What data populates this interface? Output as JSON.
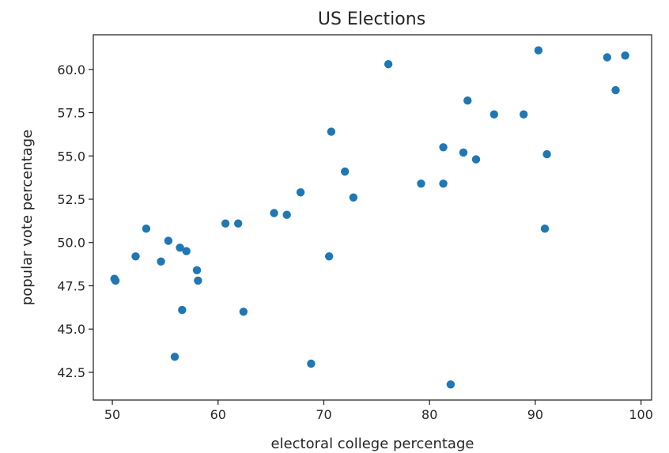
{
  "chart_data": {
    "type": "scatter",
    "title": "US Elections",
    "xlabel": "electoral college percentage",
    "ylabel": "popular vote percentage",
    "xlim": [
      48.2,
      101.0
    ],
    "ylim": [
      40.9,
      62.0
    ],
    "xticks": [
      50,
      60,
      70,
      80,
      90,
      100
    ],
    "xtick_labels": [
      "50",
      "60",
      "70",
      "80",
      "90",
      "100"
    ],
    "yticks": [
      42.5,
      45.0,
      47.5,
      50.0,
      52.5,
      55.0,
      57.5,
      60.0
    ],
    "ytick_labels": [
      "42.5",
      "45.0",
      "47.5",
      "50.0",
      "52.5",
      "55.0",
      "57.5",
      "60.0"
    ],
    "grid": false,
    "color": "#1f77b4",
    "points": [
      {
        "x": 50.2,
        "y": 47.9
      },
      {
        "x": 50.3,
        "y": 47.8
      },
      {
        "x": 52.2,
        "y": 49.2
      },
      {
        "x": 53.2,
        "y": 50.8
      },
      {
        "x": 54.6,
        "y": 48.9
      },
      {
        "x": 55.3,
        "y": 50.1
      },
      {
        "x": 55.9,
        "y": 43.4
      },
      {
        "x": 56.4,
        "y": 49.7
      },
      {
        "x": 56.6,
        "y": 46.1
      },
      {
        "x": 57.0,
        "y": 49.5
      },
      {
        "x": 58.0,
        "y": 48.4
      },
      {
        "x": 58.1,
        "y": 47.8
      },
      {
        "x": 60.7,
        "y": 51.1
      },
      {
        "x": 61.9,
        "y": 51.1
      },
      {
        "x": 62.4,
        "y": 46.0
      },
      {
        "x": 65.3,
        "y": 51.7
      },
      {
        "x": 66.5,
        "y": 51.6
      },
      {
        "x": 67.8,
        "y": 52.9
      },
      {
        "x": 68.8,
        "y": 43.0
      },
      {
        "x": 70.5,
        "y": 49.2
      },
      {
        "x": 70.7,
        "y": 56.4
      },
      {
        "x": 72.0,
        "y": 54.1
      },
      {
        "x": 72.8,
        "y": 52.6
      },
      {
        "x": 76.1,
        "y": 60.3
      },
      {
        "x": 79.2,
        "y": 53.4
      },
      {
        "x": 81.3,
        "y": 55.5
      },
      {
        "x": 81.3,
        "y": 53.4
      },
      {
        "x": 82.0,
        "y": 41.8
      },
      {
        "x": 83.2,
        "y": 55.2
      },
      {
        "x": 83.6,
        "y": 58.2
      },
      {
        "x": 84.4,
        "y": 54.8
      },
      {
        "x": 86.1,
        "y": 57.4
      },
      {
        "x": 88.9,
        "y": 57.4
      },
      {
        "x": 90.3,
        "y": 61.1
      },
      {
        "x": 90.9,
        "y": 50.8
      },
      {
        "x": 91.1,
        "y": 55.1
      },
      {
        "x": 96.8,
        "y": 60.7
      },
      {
        "x": 97.6,
        "y": 58.8
      },
      {
        "x": 98.5,
        "y": 60.8
      }
    ]
  }
}
